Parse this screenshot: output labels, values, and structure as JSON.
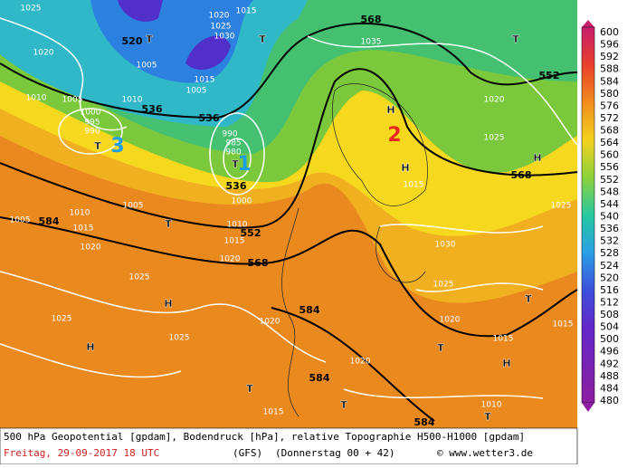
{
  "map": {
    "labels": [
      "1025",
      "1020",
      "520",
      "T",
      "1020",
      "1025",
      "1030",
      "1015",
      "T",
      "568",
      "1035",
      "T",
      "1005",
      "1010",
      "1005",
      "1000",
      "995",
      "990",
      "536",
      "1010",
      "1015",
      "1005",
      "536",
      "990",
      "985",
      "980",
      "1",
      "3",
      "2",
      "T",
      "T",
      "552",
      "1020",
      "1025",
      "H",
      "568",
      "1015",
      "H",
      "H",
      "536",
      "1000",
      "1005",
      "1010",
      "1015",
      "552",
      "T",
      "1005",
      "584",
      "1010",
      "1015",
      "1020",
      "1030",
      "1025",
      "1020",
      "568",
      "1025",
      "H",
      "1025",
      "H",
      "1025",
      "584",
      "1020",
      "1025",
      "1020",
      "T",
      "1015",
      "1015",
      "T",
      "H",
      "1020",
      "584",
      "T",
      "T",
      "1015",
      "1010",
      "T",
      "584"
    ]
  },
  "legend": {
    "labels": [
      600,
      596,
      592,
      588,
      584,
      580,
      576,
      572,
      568,
      564,
      560,
      556,
      552,
      548,
      544,
      540,
      536,
      532,
      528,
      524,
      520,
      516,
      512,
      508,
      504,
      500,
      496,
      492,
      488,
      484,
      480
    ]
  },
  "footer": {
    "description": "500 hPa Geopotential [gpdam], Bodendruck [hPa], relative Topographie H500-H1000 [gpdam]",
    "date": "Freitag, 29-09-2017  18 UTC",
    "model": "(GFS)",
    "run": "(Donnerstag 00 + 42)",
    "credit": "© www.wetter3.de"
  }
}
